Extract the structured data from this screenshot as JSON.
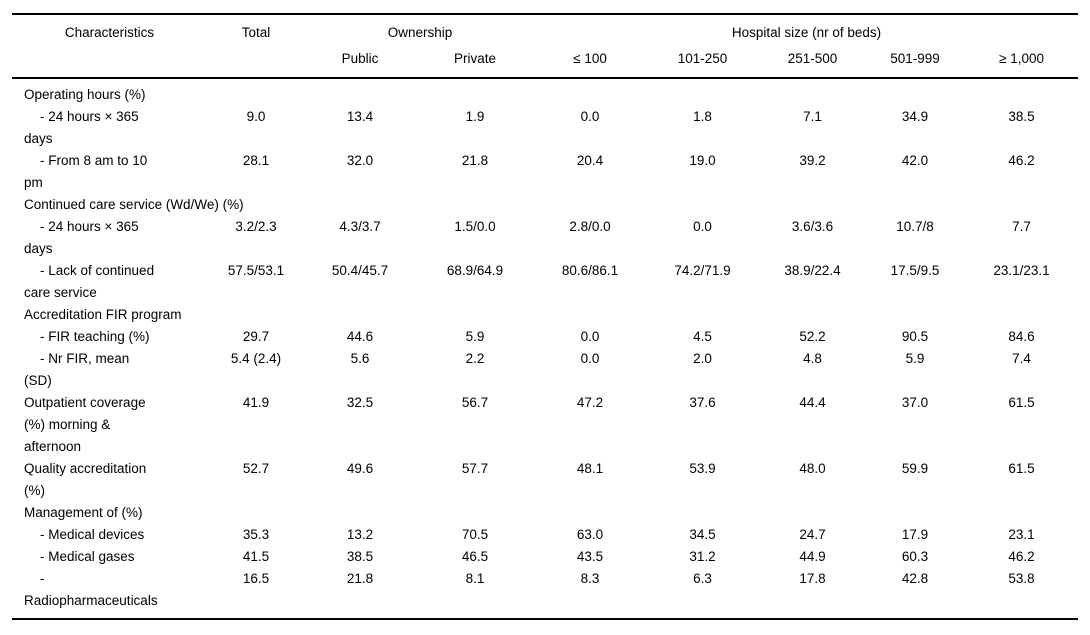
{
  "table": {
    "header": {
      "characteristics": "Characteristics",
      "total": "Total",
      "ownership": "Ownership",
      "ownership_sub": [
        "Public",
        "Private"
      ],
      "hospital_size": "Hospital size (nr of beds)",
      "hospital_size_sub": [
        "≤ 100",
        "101-250",
        "251-500",
        "501-999",
        "≥ 1,000"
      ]
    },
    "rows": [
      {
        "type": "section",
        "label": "Operating hours (%)"
      },
      {
        "type": "sub",
        "label": "- 24 hours × 365\ndays",
        "values": [
          "9.0",
          "13.4",
          "1.9",
          "0.0",
          "1.8",
          "7.1",
          "34.9",
          "38.5"
        ]
      },
      {
        "type": "sub",
        "label": "- From 8 am to 10\npm",
        "values": [
          "28.1",
          "32.0",
          "21.8",
          "20.4",
          "19.0",
          "39.2",
          "42.0",
          "46.2"
        ]
      },
      {
        "type": "section",
        "label": "Continued care service (Wd/We) (%)"
      },
      {
        "type": "sub",
        "label": "- 24 hours × 365\ndays",
        "values": [
          "3.2/2.3",
          "4.3/3.7",
          "1.5/0.0",
          "2.8/0.0",
          "0.0",
          "3.6/3.6",
          "10.7/8",
          "7.7"
        ]
      },
      {
        "type": "sub",
        "label": "- Lack of continued\ncare service",
        "values": [
          "57.5/53.1",
          "50.4/45.7",
          "68.9/64.9",
          "80.6/86.1",
          "74.2/71.9",
          "38.9/22.4",
          "17.5/9.5",
          "23.1/23.1"
        ]
      },
      {
        "type": "section",
        "label": "Accreditation FIR program"
      },
      {
        "type": "sub",
        "label": "- FIR teaching (%)",
        "values": [
          "29.7",
          "44.6",
          "5.9",
          "0.0",
          "4.5",
          "52.2",
          "90.5",
          "84.6"
        ]
      },
      {
        "type": "sub",
        "label": "- Nr FIR, mean\n(SD)",
        "values": [
          "5.4 (2.4)",
          "5.6",
          "2.2",
          "0.0",
          "2.0",
          "4.8",
          "5.9",
          "7.4"
        ]
      },
      {
        "type": "main",
        "label": "Outpatient coverage\n(%) morning &\nafternoon",
        "values": [
          "41.9",
          "32.5",
          "56.7",
          "47.2",
          "37.6",
          "44.4",
          "37.0",
          "61.5"
        ]
      },
      {
        "type": "main",
        "label": "Quality accreditation\n(%)",
        "values": [
          "52.7",
          "49.6",
          "57.7",
          "48.1",
          "53.9",
          "48.0",
          "59.9",
          "61.5"
        ]
      },
      {
        "type": "section",
        "label": "Management of (%)"
      },
      {
        "type": "sub",
        "label": "- Medical devices",
        "values": [
          "35.3",
          "13.2",
          "70.5",
          "63.0",
          "34.5",
          "24.7",
          "17.9",
          "23.1"
        ]
      },
      {
        "type": "sub",
        "label": "- Medical gases",
        "values": [
          "41.5",
          "38.5",
          "46.5",
          "43.5",
          "31.2",
          "44.9",
          "60.3",
          "46.2"
        ]
      },
      {
        "type": "sub",
        "label": "-\nRadiopharmaceuticals",
        "values": [
          "16.5",
          "21.8",
          "8.1",
          "8.3",
          "6.3",
          "17.8",
          "42.8",
          "53.8"
        ]
      }
    ]
  }
}
